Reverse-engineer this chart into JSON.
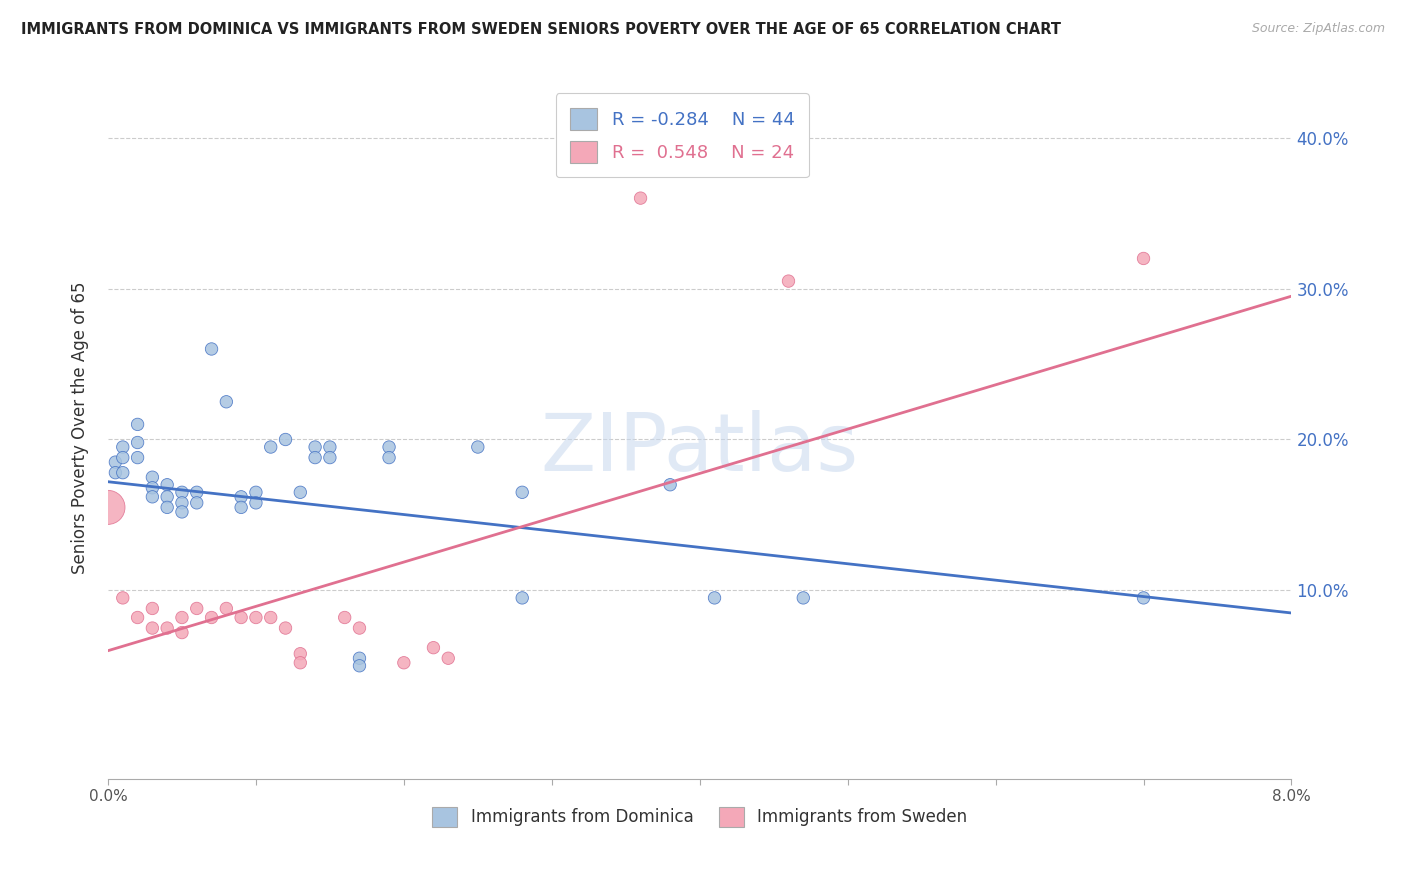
{
  "title": "IMMIGRANTS FROM DOMINICA VS IMMIGRANTS FROM SWEDEN SENIORS POVERTY OVER THE AGE OF 65 CORRELATION CHART",
  "source": "Source: ZipAtlas.com",
  "ylabel": "Seniors Poverty Over the Age of 65",
  "xlim": [
    0.0,
    0.08
  ],
  "ylim": [
    -0.025,
    0.44
  ],
  "watermark": "ZIPatlas",
  "dominica_color": "#a8c4e0",
  "sweden_color": "#f4a8b8",
  "dominica_line_color": "#4472c4",
  "sweden_line_color": "#e07090",
  "background_color": "#ffffff",
  "dominica_points": [
    [
      0.0005,
      0.185
    ],
    [
      0.0005,
      0.178
    ],
    [
      0.001,
      0.195
    ],
    [
      0.001,
      0.188
    ],
    [
      0.001,
      0.178
    ],
    [
      0.002,
      0.21
    ],
    [
      0.002,
      0.198
    ],
    [
      0.002,
      0.188
    ],
    [
      0.003,
      0.175
    ],
    [
      0.003,
      0.168
    ],
    [
      0.003,
      0.162
    ],
    [
      0.004,
      0.17
    ],
    [
      0.004,
      0.162
    ],
    [
      0.004,
      0.155
    ],
    [
      0.005,
      0.165
    ],
    [
      0.005,
      0.158
    ],
    [
      0.005,
      0.152
    ],
    [
      0.006,
      0.165
    ],
    [
      0.006,
      0.158
    ],
    [
      0.007,
      0.26
    ],
    [
      0.008,
      0.225
    ],
    [
      0.009,
      0.162
    ],
    [
      0.009,
      0.155
    ],
    [
      0.01,
      0.165
    ],
    [
      0.01,
      0.158
    ],
    [
      0.011,
      0.195
    ],
    [
      0.012,
      0.2
    ],
    [
      0.013,
      0.165
    ],
    [
      0.014,
      0.195
    ],
    [
      0.014,
      0.188
    ],
    [
      0.015,
      0.195
    ],
    [
      0.015,
      0.188
    ],
    [
      0.017,
      0.055
    ],
    [
      0.017,
      0.05
    ],
    [
      0.019,
      0.195
    ],
    [
      0.019,
      0.188
    ],
    [
      0.025,
      0.195
    ],
    [
      0.028,
      0.165
    ],
    [
      0.028,
      0.095
    ],
    [
      0.038,
      0.17
    ],
    [
      0.041,
      0.095
    ],
    [
      0.047,
      0.095
    ],
    [
      0.07,
      0.095
    ]
  ],
  "dominica_sizes": [
    80,
    80,
    80,
    80,
    80,
    80,
    80,
    80,
    80,
    80,
    80,
    80,
    80,
    80,
    80,
    80,
    80,
    80,
    80,
    80,
    80,
    80,
    80,
    80,
    80,
    80,
    80,
    80,
    80,
    80,
    80,
    80,
    80,
    80,
    80,
    80,
    80,
    80,
    80,
    80,
    80,
    80,
    80,
    80
  ],
  "sweden_points": [
    [
      0.0,
      0.155
    ],
    [
      0.001,
      0.095
    ],
    [
      0.002,
      0.082
    ],
    [
      0.003,
      0.088
    ],
    [
      0.003,
      0.075
    ],
    [
      0.004,
      0.075
    ],
    [
      0.005,
      0.082
    ],
    [
      0.005,
      0.072
    ],
    [
      0.006,
      0.088
    ],
    [
      0.007,
      0.082
    ],
    [
      0.008,
      0.088
    ],
    [
      0.009,
      0.082
    ],
    [
      0.01,
      0.082
    ],
    [
      0.011,
      0.082
    ],
    [
      0.012,
      0.075
    ],
    [
      0.013,
      0.058
    ],
    [
      0.013,
      0.052
    ],
    [
      0.016,
      0.082
    ],
    [
      0.017,
      0.075
    ],
    [
      0.02,
      0.052
    ],
    [
      0.022,
      0.062
    ],
    [
      0.023,
      0.055
    ],
    [
      0.036,
      0.36
    ],
    [
      0.046,
      0.305
    ],
    [
      0.07,
      0.32
    ]
  ],
  "sweden_sizes": [
    600,
    80,
    80,
    80,
    80,
    80,
    80,
    80,
    80,
    80,
    80,
    80,
    80,
    80,
    80,
    80,
    80,
    80,
    80,
    80,
    80,
    80,
    80,
    80,
    80
  ],
  "dominica_line_x": [
    0.0,
    0.08
  ],
  "dominica_line_y": [
    0.172,
    0.085
  ],
  "sweden_line_x": [
    0.0,
    0.08
  ],
  "sweden_line_y": [
    0.06,
    0.295
  ],
  "ytick_values": [
    0.1,
    0.2,
    0.3,
    0.4
  ],
  "ytick_labels": [
    "10.0%",
    "20.0%",
    "30.0%",
    "40.0%"
  ]
}
